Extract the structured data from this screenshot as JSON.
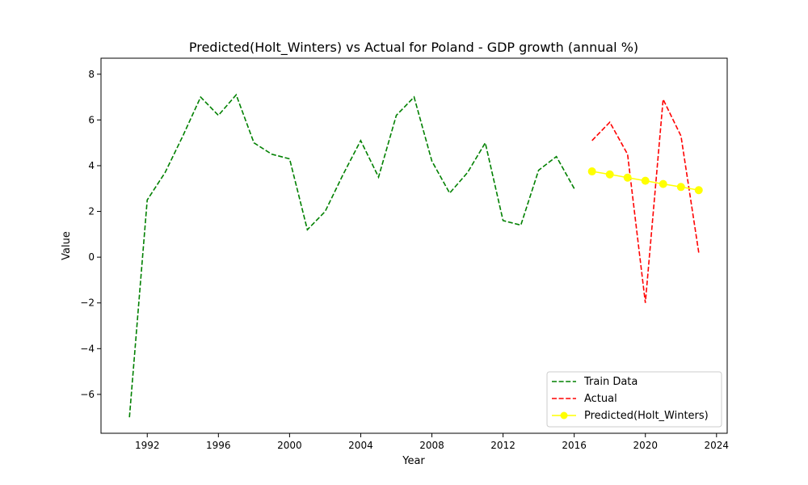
{
  "chart_data": {
    "type": "line",
    "title": "Predicted(Holt_Winters) vs Actual for Poland - GDP growth (annual %)",
    "xlabel": "Year",
    "ylabel": "Value",
    "xlim": [
      1989.4,
      2024.6
    ],
    "ylim": [
      -7.7,
      8.7
    ],
    "xticks": [
      1992,
      1996,
      2000,
      2004,
      2008,
      2012,
      2016,
      2020,
      2024
    ],
    "yticks": [
      -6,
      -4,
      -2,
      0,
      2,
      4,
      6,
      8
    ],
    "grid": false,
    "legend_position": "lower right",
    "series": [
      {
        "name": "Train Data",
        "color": "#008000",
        "style": "dashed",
        "marker": "none",
        "x": [
          1991,
          1992,
          1993,
          1994,
          1995,
          1996,
          1997,
          1998,
          1999,
          2000,
          2001,
          2002,
          2003,
          2004,
          2005,
          2006,
          2007,
          2008,
          2009,
          2010,
          2011,
          2012,
          2013,
          2014,
          2015,
          2016
        ],
        "y": [
          -7.0,
          2.5,
          3.7,
          5.3,
          7.0,
          6.2,
          7.1,
          5.0,
          4.5,
          4.3,
          1.2,
          2.0,
          3.6,
          5.1,
          3.5,
          6.2,
          7.0,
          4.2,
          2.8,
          3.7,
          5.0,
          1.6,
          1.4,
          3.8,
          4.4,
          3.0
        ]
      },
      {
        "name": "Actual",
        "color": "#ff0000",
        "style": "dashed",
        "marker": "none",
        "x": [
          2017,
          2018,
          2019,
          2020,
          2021,
          2022,
          2023
        ],
        "y": [
          5.1,
          5.9,
          4.5,
          -2.0,
          6.9,
          5.3,
          0.2
        ]
      },
      {
        "name": "Predicted(Holt_Winters)",
        "color": "#ffff00",
        "style": "solid",
        "marker": "circle",
        "x": [
          2017,
          2018,
          2019,
          2020,
          2021,
          2022,
          2023
        ],
        "y": [
          3.75,
          3.62,
          3.48,
          3.34,
          3.2,
          3.07,
          2.93
        ]
      }
    ]
  }
}
